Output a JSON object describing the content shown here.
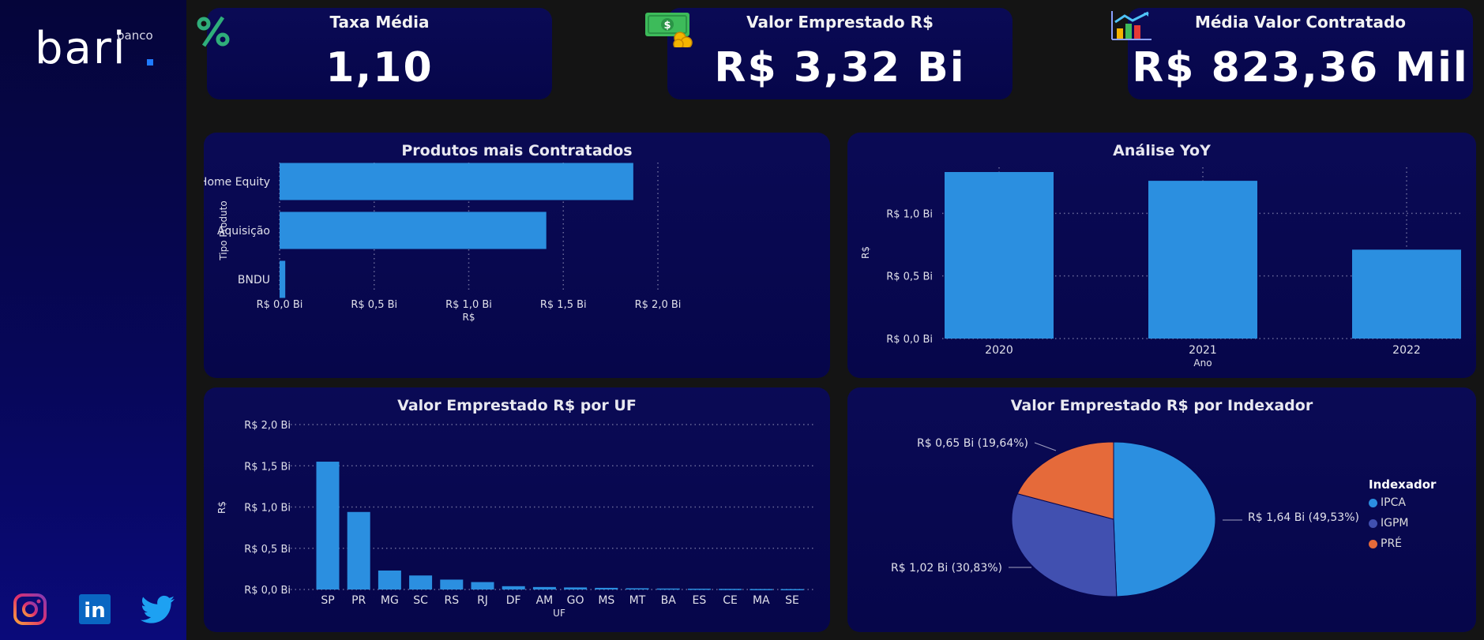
{
  "brand": {
    "small": "banco",
    "big": "bari",
    "accent": "#1f7bff"
  },
  "kpis": [
    {
      "title": "Taxa Média",
      "value": "1,10",
      "icon": "percent-icon"
    },
    {
      "title": "Valor Emprestado R$",
      "value": "R$ 3,32 Bi",
      "icon": "money-icon"
    },
    {
      "title": "Média Valor Contratado",
      "value": "R$ 823,36 Mil",
      "icon": "chart-icon"
    }
  ],
  "social": [
    {
      "name": "instagram-icon",
      "text": ""
    },
    {
      "name": "linkedin-icon",
      "text": "in"
    },
    {
      "name": "twitter-icon",
      "text": ""
    }
  ],
  "chart_data": [
    {
      "type": "bar",
      "orientation": "horizontal",
      "title": "Produtos mais Contratados",
      "categories": [
        "Home Equity",
        "Aquisição",
        "BNDU"
      ],
      "values": [
        1.87,
        1.41,
        0.03
      ],
      "xlabel": "R$",
      "ylabel": "Tipo Produto",
      "xlim": [
        0,
        2.0
      ],
      "tick_labels": [
        "R$ 0,0 Bi",
        "R$ 0,5 Bi",
        "R$ 1,0 Bi",
        "R$ 1,5 Bi",
        "R$ 2,0 Bi"
      ],
      "color": "#2b8fe0"
    },
    {
      "type": "bar",
      "title": "Análise YoY",
      "categories": [
        "2020",
        "2021",
        "2022"
      ],
      "values": [
        1.33,
        1.26,
        0.71
      ],
      "xlabel": "Ano",
      "ylabel": "R$",
      "ylim": [
        0,
        1.33
      ],
      "tick_labels": [
        "R$ 0,0 Bi",
        "R$ 0,5 Bi",
        "R$ 1,0 Bi"
      ],
      "color": "#2b8fe0"
    },
    {
      "type": "bar",
      "title": "Valor Emprestado R$ por UF",
      "categories": [
        "SP",
        "PR",
        "MG",
        "SC",
        "RS",
        "RJ",
        "DF",
        "AM",
        "GO",
        "MS",
        "MT",
        "BA",
        "ES",
        "CE",
        "MA",
        "SE"
      ],
      "values": [
        1.55,
        0.94,
        0.23,
        0.17,
        0.12,
        0.09,
        0.04,
        0.03,
        0.025,
        0.02,
        0.015,
        0.012,
        0.01,
        0.008,
        0.006,
        0.005
      ],
      "xlabel": "UF",
      "ylabel": "R$",
      "ylim": [
        0,
        2.0
      ],
      "tick_labels": [
        "R$ 0,0 Bi",
        "R$ 0,5 Bi",
        "R$ 1,0 Bi",
        "R$ 1,5 Bi",
        "R$ 2,0 Bi"
      ],
      "color": "#2b8fe0"
    },
    {
      "type": "pie",
      "title": "Valor Emprestado R$ por Indexador",
      "labels": [
        "IPCA",
        "IGPM",
        "PRÉ"
      ],
      "values": [
        49.53,
        30.83,
        19.64
      ],
      "data_labels": [
        "R$ 1,64 Bi (49,53%)",
        "R$ 1,02 Bi (30,83%)",
        "R$ 0,65 Bi (19,64%)"
      ],
      "colors": [
        "#2b8fe0",
        "#4150b0",
        "#e56a3a"
      ],
      "legend_title": "Indexador",
      "legend_position": "right"
    }
  ]
}
